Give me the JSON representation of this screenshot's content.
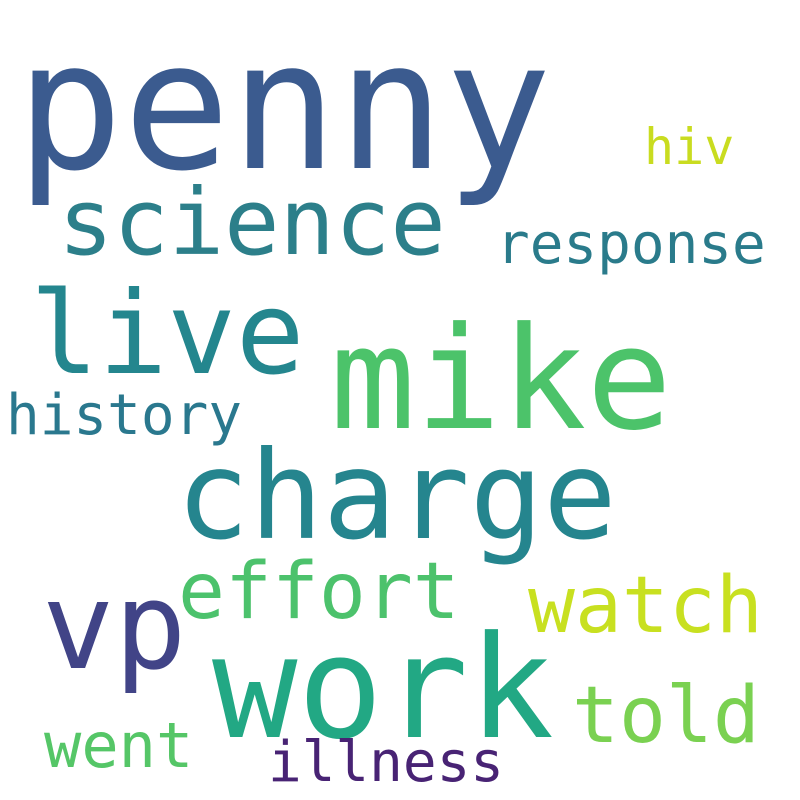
{
  "words": {
    "penny": {
      "text": "penny",
      "color": "#3b5b8f"
    },
    "science": {
      "text": "science",
      "color": "#2c7f8a"
    },
    "hiv": {
      "text": "hiv",
      "color": "#c9dc20"
    },
    "response": {
      "text": "response",
      "color": "#2a7b8b"
    },
    "live": {
      "text": "live",
      "color": "#24868e"
    },
    "mike": {
      "text": "mike",
      "color": "#4cc36a"
    },
    "history": {
      "text": "history",
      "color": "#2a788e"
    },
    "charge": {
      "text": "charge",
      "color": "#25858e"
    },
    "effort": {
      "text": "effort",
      "color": "#4cc26c"
    },
    "vp": {
      "text": "vp",
      "color": "#414487"
    },
    "watch": {
      "text": "watch",
      "color": "#c8e020"
    },
    "work": {
      "text": "work",
      "color": "#22a884"
    },
    "told": {
      "text": "told",
      "color": "#7ad151"
    },
    "went": {
      "text": "went",
      "color": "#55c667"
    },
    "illness": {
      "text": "illness",
      "color": "#482374"
    }
  }
}
